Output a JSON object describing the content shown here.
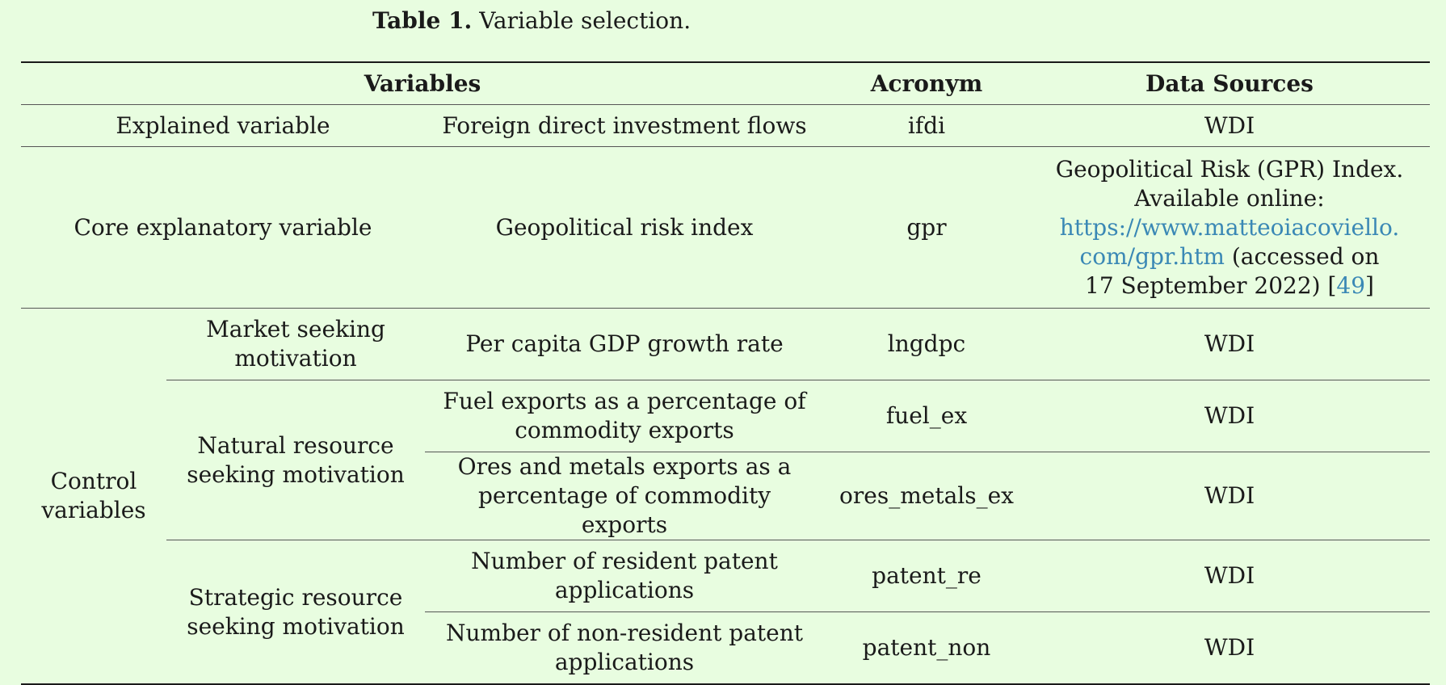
{
  "caption": {
    "label": "Table 1.",
    "text": "Variable selection."
  },
  "table": {
    "headers": {
      "variables": "Variables",
      "acronym": "Acronym",
      "data_sources": "Data Sources"
    },
    "rows": [
      {
        "group": "Explained variable",
        "variable": "Foreign direct investment flows",
        "acronym": "ifdi",
        "source": "WDI"
      },
      {
        "group": "Core explanatory variable",
        "variable": "Geopolitical risk index",
        "acronym": "gpr",
        "source_line1": "Geopolitical Risk (GPR) Index.",
        "source_line2": "Available online:",
        "source_link1": "https://www.matteoiacoviello.",
        "source_link2": "com/gpr.htm",
        "source_after_link": " (accessed on",
        "source_line5_a": "17 September 2022) [",
        "source_ref": "49",
        "source_line5_b": "]"
      }
    ],
    "control": {
      "label_line1": "Control",
      "label_line2": "variables",
      "market": {
        "motivation_line1": "Market seeking",
        "motivation_line2": "motivation",
        "variable": "Per capita GDP growth rate",
        "acronym": "lngdpc",
        "source": "WDI"
      },
      "natural": {
        "motivation_line1": "Natural resource",
        "motivation_line2": "seeking motivation",
        "items": [
          {
            "variable_line1": "Fuel exports as a percentage of",
            "variable_line2": "commodity exports",
            "acronym": "fuel_ex",
            "source": "WDI"
          },
          {
            "variable_line1": "Ores and metals exports as a",
            "variable_line2": "percentage of commodity exports",
            "acronym": "ores_metals_ex",
            "source": "WDI"
          }
        ]
      },
      "strategic": {
        "motivation_line1": "Strategic resource",
        "motivation_line2": "seeking motivation",
        "items": [
          {
            "variable_line1": "Number of resident patent",
            "variable_line2": "applications",
            "acronym": "patent_re",
            "source": "WDI"
          },
          {
            "variable_line1": "Number of non-resident patent",
            "variable_line2": "applications",
            "acronym": "patent_non",
            "source": "WDI"
          }
        ]
      }
    }
  }
}
